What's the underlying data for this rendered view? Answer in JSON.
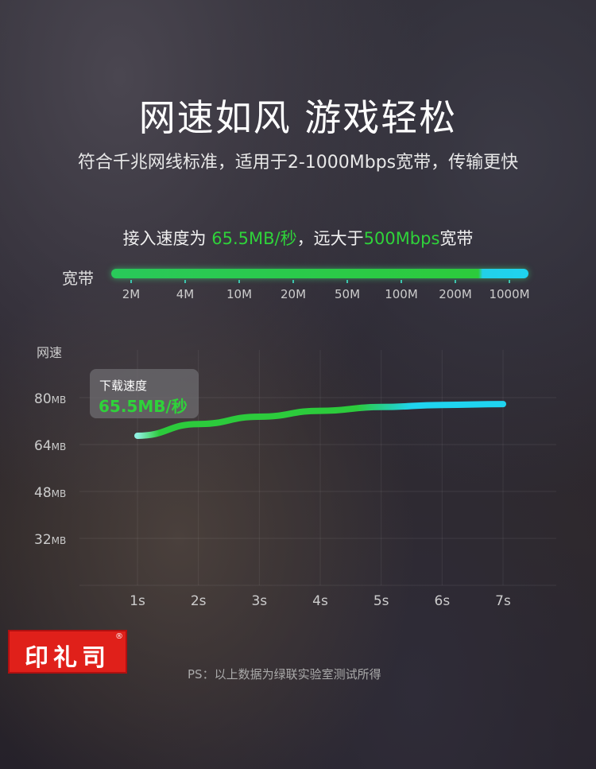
{
  "header": {
    "title": "网速如风 游戏轻松",
    "subtitle": "符合千兆网线标准，适用于2-1000Mbps宽带，传输更快"
  },
  "speed_line": {
    "prefix": "接入速度为 ",
    "speed": "65.5MB/秒",
    "middle": "，远大于",
    "bandwidth": "500Mbps",
    "suffix": "宽带"
  },
  "broadband": {
    "label": "宽带",
    "ticks": [
      "2M",
      "4M",
      "10M",
      "20M",
      "50M",
      "100M",
      "200M",
      "1000M"
    ],
    "fill_level_tick": "500M",
    "colors": {
      "green": "#2ccb3c",
      "cyan": "#1fd4f0"
    }
  },
  "tooltip": {
    "label": "下载速度",
    "value": "65.5MB/秒"
  },
  "chart_data": {
    "type": "line",
    "ylabel": "网速",
    "x": [
      "1s",
      "2s",
      "3s",
      "4s",
      "5s",
      "6s",
      "7s"
    ],
    "values": [
      67,
      71,
      73.5,
      75.5,
      76.8,
      77.5,
      77.8
    ],
    "yticks": [
      {
        "v": 32,
        "label": "32",
        "unit": "MB"
      },
      {
        "v": 48,
        "label": "48",
        "unit": "MB"
      },
      {
        "v": 64,
        "label": "64",
        "unit": "MB"
      },
      {
        "v": 80,
        "label": "80",
        "unit": "MB"
      }
    ],
    "ylim": [
      16,
      96
    ],
    "grid": true,
    "colors": {
      "start": "#2ccb3c",
      "end": "#1fd4f0"
    }
  },
  "logo": {
    "text": "印礼司",
    "mark": "®"
  },
  "footnote": "PS：以上数据为绿联实验室测试所得"
}
